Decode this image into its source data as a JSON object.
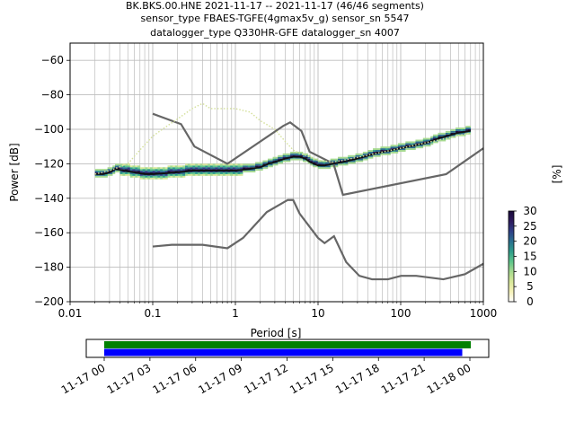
{
  "chart_data": [
    {
      "type": "heatmap",
      "subtype": "probabilistic-power-spectral-density",
      "title_lines": [
        "BK.BKS.00.HNE   2021-11-17 -- 2021-11-17  (46/46 segments)",
        "sensor_type FBAES-TGFE(4gmax5v_g) sensor_sn 5547",
        "datalogger_type Q330HR-GFE datalogger_sn 4007"
      ],
      "xlabel": "Period [s]",
      "ylabel": "Power [dB]",
      "x_scale": "log",
      "xlim": [
        0.01,
        1000
      ],
      "ylim": [
        -200,
        -50
      ],
      "grid": true,
      "x_ticks": [
        0.01,
        0.1,
        1,
        10,
        100,
        1000
      ],
      "x_tick_labels": [
        "0.01",
        "0.1",
        "1",
        "10",
        "100",
        "1000"
      ],
      "y_ticks": [
        -200,
        -180,
        -160,
        -140,
        -120,
        -100,
        -80,
        -60
      ],
      "y_tick_labels": [
        "−200",
        "−180",
        "−160",
        "−140",
        "−120",
        "−100",
        "−80",
        "−60"
      ],
      "colorbar": {
        "label": "[%]",
        "min": 0,
        "max": 30,
        "ticks": [
          0,
          5,
          10,
          15,
          20,
          25,
          30
        ],
        "tick_labels": [
          "0",
          "5",
          "10",
          "15",
          "20",
          "25",
          "30"
        ],
        "colormap": [
          "#ffffff",
          "#f6f2b8",
          "#d8e89a",
          "#a6da8f",
          "#5cc48a",
          "#2e9c8a",
          "#2a6f8f",
          "#2e3e86",
          "#2d1a5c",
          "#1a0a3a"
        ]
      },
      "series": [
        {
          "role": "mode",
          "color": "#111111",
          "points": [
            [
              0.02,
              -126
            ],
            [
              0.025,
              -126
            ],
            [
              0.03,
              -125
            ],
            [
              0.035,
              -123
            ],
            [
              0.045,
              -124
            ],
            [
              0.06,
              -125
            ],
            [
              0.08,
              -126
            ],
            [
              0.1,
              -126
            ],
            [
              0.2,
              -125
            ],
            [
              0.3,
              -124
            ],
            [
              0.5,
              -124
            ],
            [
              0.8,
              -124
            ],
            [
              1,
              -124
            ],
            [
              1.5,
              -123
            ],
            [
              2,
              -122
            ],
            [
              2.5,
              -120
            ],
            [
              3,
              -119
            ],
            [
              4,
              -117
            ],
            [
              5,
              -116
            ],
            [
              6,
              -116
            ],
            [
              7,
              -117
            ],
            [
              8,
              -119
            ],
            [
              10,
              -121
            ],
            [
              12,
              -121
            ],
            [
              15,
              -120
            ],
            [
              20,
              -119
            ],
            [
              30,
              -117
            ],
            [
              50,
              -114
            ],
            [
              80,
              -112
            ],
            [
              100,
              -111
            ],
            [
              200,
              -108
            ],
            [
              300,
              -105
            ],
            [
              500,
              -102
            ],
            [
              700,
              -101
            ]
          ]
        },
        {
          "role": "mean",
          "color": "#d4e09a",
          "style": "dotted",
          "points": [
            [
              0.02,
              -126
            ],
            [
              0.03,
              -124
            ],
            [
              0.05,
              -120
            ],
            [
              0.07,
              -112
            ],
            [
              0.1,
              -104
            ],
            [
              0.15,
              -98
            ],
            [
              0.2,
              -94
            ],
            [
              0.3,
              -88
            ],
            [
              0.4,
              -85
            ],
            [
              0.5,
              -88
            ],
            [
              0.7,
              -88
            ],
            [
              1,
              -88
            ],
            [
              1.5,
              -90
            ],
            [
              2,
              -95
            ],
            [
              3,
              -100
            ],
            [
              4,
              -107
            ],
            [
              5,
              -112
            ],
            [
              6,
              -114
            ],
            [
              8,
              -116
            ],
            [
              10,
              -118
            ],
            [
              15,
              -119
            ],
            [
              20,
              -118
            ],
            [
              50,
              -114
            ],
            [
              100,
              -111
            ],
            [
              300,
              -106
            ],
            [
              700,
              -102
            ]
          ]
        }
      ],
      "noise_models": [
        {
          "name": "NHNM",
          "color": "#666666",
          "points": [
            [
              0.1,
              -91
            ],
            [
              0.22,
              -97
            ],
            [
              0.32,
              -110
            ],
            [
              0.8,
              -120
            ],
            [
              3.8,
              -98
            ],
            [
              4.6,
              -96
            ],
            [
              6.3,
              -101
            ],
            [
              7.9,
              -113
            ],
            [
              15.4,
              -120
            ],
            [
              20,
              -138
            ],
            [
              354.8,
              -126
            ],
            [
              1000,
              -111
            ]
          ]
        },
        {
          "name": "NLNM",
          "color": "#666666",
          "points": [
            [
              0.1,
              -168
            ],
            [
              0.17,
              -167
            ],
            [
              0.4,
              -167
            ],
            [
              0.8,
              -169
            ],
            [
              1.24,
              -163
            ],
            [
              2.4,
              -148
            ],
            [
              4.3,
              -141
            ],
            [
              5,
              -141
            ],
            [
              6,
              -149
            ],
            [
              10,
              -163
            ],
            [
              12,
              -166
            ],
            [
              15.6,
              -162
            ],
            [
              21.9,
              -177
            ],
            [
              31.6,
              -185
            ],
            [
              45,
              -187
            ],
            [
              70,
              -187
            ],
            [
              101,
              -185
            ],
            [
              154,
              -185
            ],
            [
              328,
              -187
            ],
            [
              600,
              -184
            ],
            [
              1000,
              -178
            ]
          ]
        }
      ]
    },
    {
      "type": "timeline",
      "xlim": [
        "2021-11-17 00:00",
        "2021-11-18 00:00"
      ],
      "x_tick_labels": [
        "11-17 00",
        "11-17 03",
        "11-17 06",
        "11-17 09",
        "11-17 12",
        "11-17 15",
        "11-17 18",
        "11-17 21",
        "11-18 00"
      ],
      "x_tick_hours": [
        0,
        3,
        6,
        9,
        12,
        15,
        18,
        21,
        24
      ],
      "bars": [
        {
          "color": "#008000",
          "start_hour": 0,
          "end_hour": 24
        },
        {
          "color": "#0000ff",
          "start_hour": 0,
          "end_hour": 23.5
        }
      ]
    }
  ]
}
